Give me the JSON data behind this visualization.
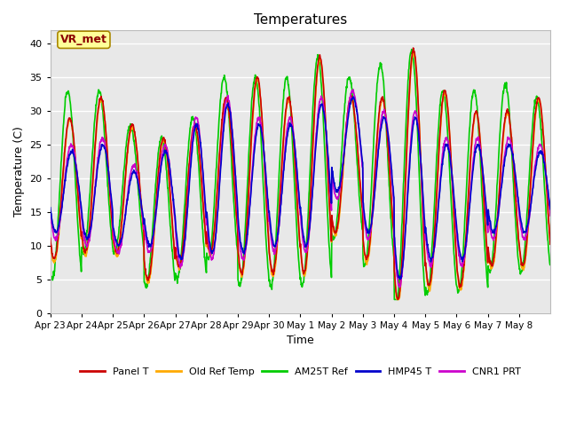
{
  "title": "Temperatures",
  "xlabel": "Time",
  "ylabel": "Temperature (C)",
  "ylim": [
    0,
    42
  ],
  "yticks": [
    0,
    5,
    10,
    15,
    20,
    25,
    30,
    35,
    40
  ],
  "background_color": "#e8e8e8",
  "fig_bg_color": "#ffffff",
  "grid_color": "#ffffff",
  "series": {
    "Panel T": {
      "color": "#cc0000",
      "lw": 1.2
    },
    "Old Ref Temp": {
      "color": "#ffaa00",
      "lw": 1.2
    },
    "AM25T Ref": {
      "color": "#00cc00",
      "lw": 1.2
    },
    "HMP45 T": {
      "color": "#0000cc",
      "lw": 1.2
    },
    "CNR1 PRT": {
      "color": "#cc00cc",
      "lw": 1.2
    }
  },
  "annotation_text": "VR_met",
  "annotation_color": "#8b0000",
  "annotation_bg": "#ffff99",
  "date_labels": [
    "Apr 23",
    "Apr 24",
    "Apr 25",
    "Apr 26",
    "Apr 27",
    "Apr 28",
    "Apr 29",
    "Apr 30",
    "May 1",
    "May 2",
    "May 3",
    "May 4",
    "May 5",
    "May 6",
    "May 7",
    "May 8"
  ],
  "n_days": 16,
  "day_min": [
    8,
    9,
    9,
    5,
    7,
    9,
    6,
    6,
    6,
    12,
    8,
    2,
    4,
    4,
    7,
    7
  ],
  "day_max": [
    29,
    32,
    28,
    26,
    28,
    32,
    35,
    32,
    38,
    32,
    32,
    39,
    33,
    30,
    30,
    32
  ],
  "green_min": [
    6,
    10,
    10,
    5,
    6,
    9,
    5,
    5,
    5,
    12,
    8,
    2,
    4,
    4,
    7,
    7
  ],
  "green_max": [
    33,
    33,
    28,
    26,
    29,
    35,
    35,
    35,
    38,
    35,
    37,
    39,
    33,
    33,
    34,
    32
  ],
  "blue_min": [
    12,
    11,
    10,
    10,
    8,
    9,
    9,
    10,
    10,
    18,
    12,
    5,
    8,
    8,
    12,
    12
  ],
  "blue_max": [
    24,
    25,
    21,
    24,
    28,
    31,
    28,
    28,
    31,
    32,
    29,
    29,
    25,
    25,
    25,
    24
  ],
  "peak_phase_shift": 0.08,
  "pts_per_day": 96
}
